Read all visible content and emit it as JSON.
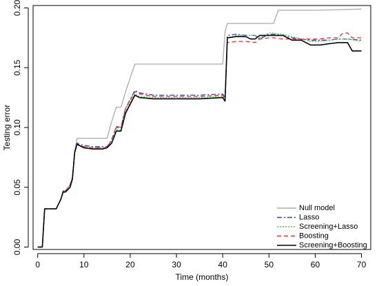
{
  "chart_data": {
    "type": "line",
    "title": "",
    "xlabel": "Time (months)",
    "ylabel": "Testing error",
    "xlim": [
      -1,
      72
    ],
    "ylim": [
      -0.002,
      0.202
    ],
    "xticks": [
      0,
      10,
      20,
      30,
      40,
      50,
      60,
      70
    ],
    "yticks": [
      0.0,
      0.05,
      0.1,
      0.15,
      0.2
    ],
    "xtick_labels": [
      "0",
      "10",
      "20",
      "30",
      "40",
      "50",
      "60",
      "70"
    ],
    "ytick_labels": [
      "0.00",
      "0.05",
      "0.10",
      "0.15",
      "0.20"
    ],
    "grid": false,
    "legend_position": "bottom-right",
    "series": [
      {
        "name": "Null model",
        "color": "#aaaaaa",
        "dash": "solid",
        "x": [
          0,
          1,
          1.5,
          2,
          4,
          5,
          5.5,
          6,
          7,
          7.5,
          8,
          8.5,
          9,
          10,
          15,
          16,
          17,
          18,
          19,
          21,
          40,
          40.5,
          41,
          51,
          52,
          60,
          70
        ],
        "y": [
          0.0,
          0.0,
          0.032,
          0.032,
          0.032,
          0.04,
          0.047,
          0.047,
          0.052,
          0.058,
          0.08,
          0.091,
          0.091,
          0.091,
          0.091,
          0.105,
          0.117,
          0.117,
          0.13,
          0.153,
          0.153,
          0.18,
          0.187,
          0.187,
          0.198,
          0.198,
          0.199
        ]
      },
      {
        "name": "Lasso",
        "color": "#3333cc",
        "dash": "dashdot",
        "x": [
          0,
          1,
          1.5,
          2,
          4,
          5,
          5.5,
          6,
          7,
          7.5,
          8,
          8.5,
          9,
          10,
          12,
          14,
          15,
          16,
          17,
          18,
          19,
          21,
          22,
          25,
          30,
          35,
          40,
          40.5,
          41,
          43,
          45,
          47,
          48,
          50,
          51,
          53,
          55,
          57,
          59,
          61,
          63,
          65,
          67,
          70
        ],
        "y": [
          0.0,
          0.0,
          0.032,
          0.032,
          0.032,
          0.04,
          0.047,
          0.047,
          0.052,
          0.058,
          0.08,
          0.087,
          0.086,
          0.085,
          0.084,
          0.084,
          0.084,
          0.09,
          0.1,
          0.1,
          0.116,
          0.131,
          0.129,
          0.127,
          0.127,
          0.127,
          0.128,
          0.125,
          0.177,
          0.178,
          0.177,
          0.177,
          0.174,
          0.178,
          0.178,
          0.177,
          0.175,
          0.174,
          0.173,
          0.173,
          0.173,
          0.174,
          0.174,
          0.173
        ]
      },
      {
        "name": "Screening+Lasso",
        "color": "#33cc33",
        "dash": "dotted",
        "x": [
          0,
          1,
          1.5,
          2,
          4,
          5,
          5.5,
          6,
          7,
          7.5,
          8,
          8.5,
          9,
          10,
          12,
          14,
          15,
          16,
          17,
          18,
          19,
          21,
          22,
          25,
          30,
          35,
          40,
          40.5,
          41,
          43,
          45,
          47,
          48,
          50,
          51,
          53,
          55,
          57,
          59,
          61,
          63,
          65,
          67,
          70
        ],
        "y": [
          0.0,
          0.0,
          0.032,
          0.032,
          0.032,
          0.04,
          0.047,
          0.047,
          0.052,
          0.058,
          0.08,
          0.086,
          0.085,
          0.084,
          0.083,
          0.083,
          0.083,
          0.089,
          0.098,
          0.098,
          0.114,
          0.128,
          0.126,
          0.125,
          0.125,
          0.125,
          0.126,
          0.124,
          0.175,
          0.177,
          0.177,
          0.177,
          0.175,
          0.179,
          0.179,
          0.178,
          0.176,
          0.174,
          0.172,
          0.172,
          0.173,
          0.174,
          0.174,
          0.172
        ]
      },
      {
        "name": "Boosting",
        "color": "#e03030",
        "dash": "dashed",
        "x": [
          0,
          1,
          1.5,
          2,
          4,
          5,
          5.5,
          6,
          7,
          7.5,
          8,
          8.5,
          9,
          10,
          12,
          14,
          15,
          16,
          17,
          18,
          19,
          21,
          22,
          25,
          30,
          35,
          40,
          40.5,
          41,
          43,
          45,
          47,
          48,
          50,
          51,
          53,
          55,
          57,
          59,
          61,
          63,
          65,
          66,
          67,
          68,
          70
        ],
        "y": [
          0.0,
          0.0,
          0.032,
          0.032,
          0.032,
          0.04,
          0.047,
          0.047,
          0.052,
          0.058,
          0.08,
          0.086,
          0.085,
          0.084,
          0.083,
          0.083,
          0.083,
          0.09,
          0.101,
          0.1,
          0.116,
          0.13,
          0.128,
          0.126,
          0.126,
          0.126,
          0.127,
          0.123,
          0.171,
          0.172,
          0.172,
          0.171,
          0.174,
          0.175,
          0.175,
          0.174,
          0.174,
          0.174,
          0.174,
          0.174,
          0.175,
          0.175,
          0.179,
          0.179,
          0.175,
          0.175
        ]
      },
      {
        "name": "Screening+Boosting",
        "color": "#000000",
        "dash": "solid",
        "x": [
          0,
          1,
          1.5,
          2,
          4,
          5,
          5.5,
          6,
          7,
          7.5,
          8,
          8.5,
          9,
          10,
          12,
          14,
          15,
          16,
          17,
          18,
          19,
          21,
          22,
          25,
          30,
          35,
          40,
          40.5,
          41,
          43,
          45,
          46,
          47,
          48,
          50,
          51,
          53,
          55,
          57,
          59,
          61,
          63,
          65,
          67,
          68,
          70
        ],
        "y": [
          0.0,
          0.0,
          0.032,
          0.032,
          0.032,
          0.04,
          0.046,
          0.046,
          0.05,
          0.057,
          0.079,
          0.086,
          0.085,
          0.083,
          0.082,
          0.082,
          0.083,
          0.087,
          0.097,
          0.097,
          0.112,
          0.127,
          0.125,
          0.124,
          0.124,
          0.124,
          0.125,
          0.122,
          0.175,
          0.176,
          0.176,
          0.174,
          0.174,
          0.177,
          0.177,
          0.177,
          0.177,
          0.173,
          0.173,
          0.169,
          0.169,
          0.17,
          0.171,
          0.171,
          0.164,
          0.164
        ]
      }
    ]
  }
}
